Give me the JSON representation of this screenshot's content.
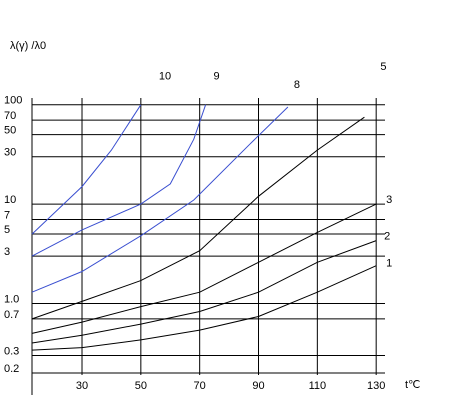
{
  "chart_data": {
    "type": "line",
    "y_label": "λ(γ) /λ0",
    "x_label": "t℃",
    "log_y": true,
    "grid": true,
    "xlim": [
      13,
      133
    ],
    "xticks": [
      30,
      50,
      70,
      90,
      110,
      130
    ],
    "ylim": [
      0.12,
      117
    ],
    "yticks": [
      0.2,
      0.3,
      0.7,
      {
        "value": 1,
        "label": "1.0"
      },
      3,
      5,
      7,
      10,
      30,
      50,
      70,
      100
    ],
    "series": [
      {
        "name": "10",
        "color": "#3a4fd0",
        "x": [
          13,
          30,
          40,
          50
        ],
        "values": [
          5,
          15,
          35,
          100
        ]
      },
      {
        "name": "9",
        "color": "#3a4fd0",
        "x": [
          13,
          30,
          50,
          60,
          68,
          72
        ],
        "values": [
          3,
          5.5,
          10,
          16,
          45,
          100
        ]
      },
      {
        "name": "8",
        "color": "#3a4fd0",
        "x": [
          13,
          30,
          50,
          68,
          87,
          100
        ],
        "values": [
          1.3,
          2.1,
          4.8,
          11,
          40,
          95
        ]
      },
      {
        "name": "5",
        "color": "#000000",
        "x": [
          13,
          30,
          50,
          70,
          90,
          110,
          126
        ],
        "values": [
          0.7,
          1.05,
          1.7,
          3.4,
          12,
          35,
          75
        ]
      },
      {
        "name": "3",
        "color": "#000000",
        "x": [
          13,
          30,
          50,
          70,
          90,
          110,
          130
        ],
        "values": [
          0.5,
          0.65,
          0.93,
          1.3,
          2.6,
          5.2,
          10
        ]
      },
      {
        "name": "2",
        "color": "#000000",
        "x": [
          13,
          30,
          50,
          70,
          90,
          110,
          130
        ],
        "values": [
          0.4,
          0.48,
          0.62,
          0.83,
          1.3,
          2.6,
          4.3
        ]
      },
      {
        "name": "1",
        "color": "#000000",
        "x": [
          13,
          30,
          50,
          70,
          90,
          110,
          130
        ],
        "values": [
          0.34,
          0.36,
          0.43,
          0.54,
          0.74,
          1.3,
          2.4
        ]
      }
    ]
  }
}
